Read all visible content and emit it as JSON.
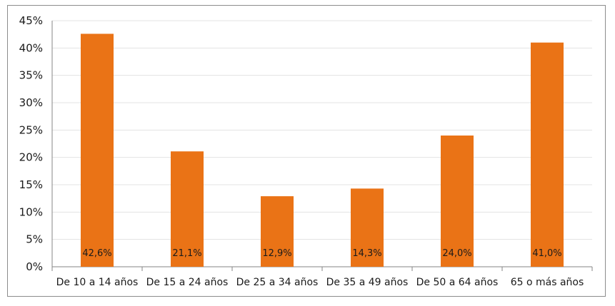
{
  "chart_data": {
    "type": "bar",
    "title": "",
    "xlabel": "",
    "ylabel": "",
    "categories": [
      "De 10 a 14 años",
      "De 15 a 24 años",
      "De 25 a 34 años",
      "De 35 a 49 años",
      "De 50 a 64 años",
      "65 o más años"
    ],
    "values": [
      42.6,
      21.1,
      12.9,
      14.3,
      24.0,
      41.0
    ],
    "data_labels": [
      "42,6%",
      "21,1%",
      "12,9%",
      "14,3%",
      "24,0%",
      "41,0%"
    ],
    "ylim": [
      0,
      45
    ],
    "yticks": [
      0,
      5,
      10,
      15,
      20,
      25,
      30,
      35,
      40,
      45
    ],
    "ytick_labels": [
      "0%",
      "5%",
      "10%",
      "15%",
      "20%",
      "25%",
      "30%",
      "35%",
      "40%",
      "45%"
    ],
    "grid": true,
    "legend": "none",
    "bar_color": "#ea7316"
  }
}
